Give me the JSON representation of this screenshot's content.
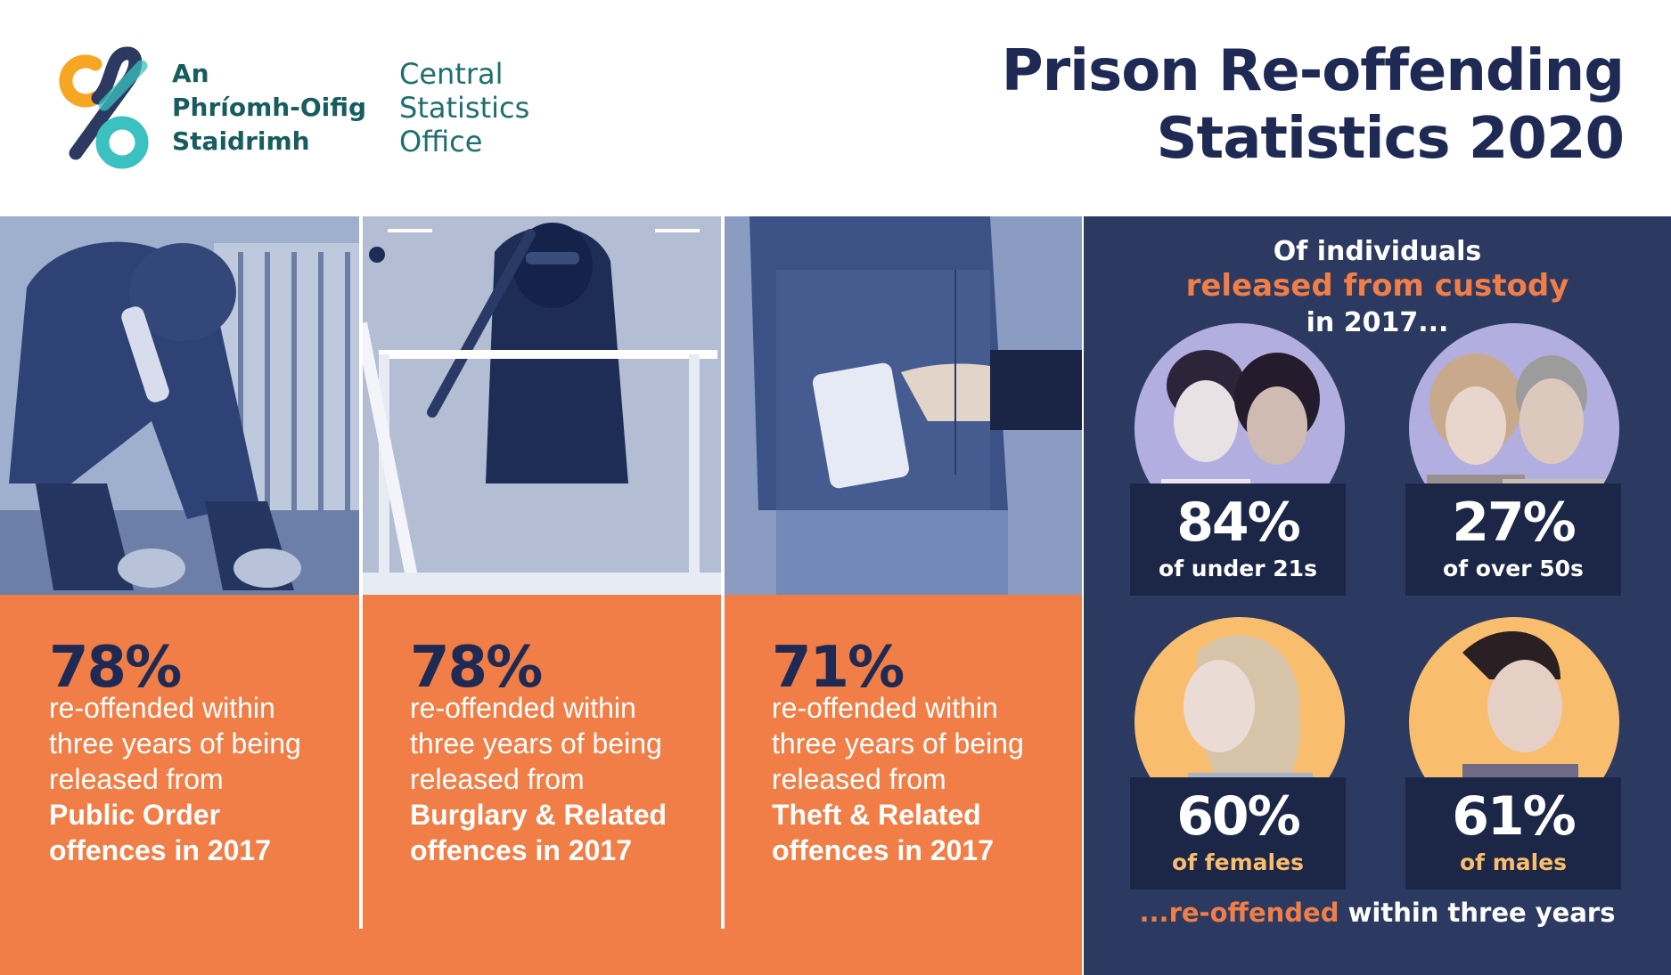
{
  "logo": {
    "irish": [
      "An",
      "Phríomh-Oifig",
      "Staidrimh"
    ],
    "english": [
      "Central",
      "Statistics",
      "Office"
    ]
  },
  "title": [
    "Prison Re-offending",
    "Statistics 2020"
  ],
  "colors": {
    "navy": "#1f2a54",
    "orange": "#f07e46",
    "panel": "#2c3a62",
    "box": "#1c2647",
    "lavender": "#b3aee0",
    "peach": "#f9bd6e",
    "teal": "#3bc1bf",
    "amber": "#f6a623"
  },
  "offences": [
    {
      "pct": "78%",
      "lines": [
        "re-offended within",
        "three years of being",
        "released from"
      ],
      "emph": [
        "Public Order",
        "offences in 2017"
      ]
    },
    {
      "pct": "78%",
      "lines": [
        "re-offended within",
        "three years of being",
        "released from"
      ],
      "emph": [
        "Burglary & Related",
        "offences in 2017"
      ]
    },
    {
      "pct": "71%",
      "lines": [
        "re-offended within",
        "three years of being",
        "released from"
      ],
      "emph": [
        "Theft & Related",
        "offences in 2017"
      ]
    }
  ],
  "custody": {
    "heading1": "Of individuals",
    "heading2": "released from custody",
    "heading3": "in 2017...",
    "stats": [
      {
        "value": "84%",
        "label": "of under 21s",
        "label_color": "#ffffff"
      },
      {
        "value": "27%",
        "label": "of over 50s",
        "label_color": "#ffffff"
      },
      {
        "value": "60%",
        "label": "of females",
        "label_color": "#f9bd6e"
      },
      {
        "value": "61%",
        "label": "of males",
        "label_color": "#f9bd6e"
      }
    ],
    "footer_hl": "...re-offended",
    "footer_rest": " within three years"
  }
}
